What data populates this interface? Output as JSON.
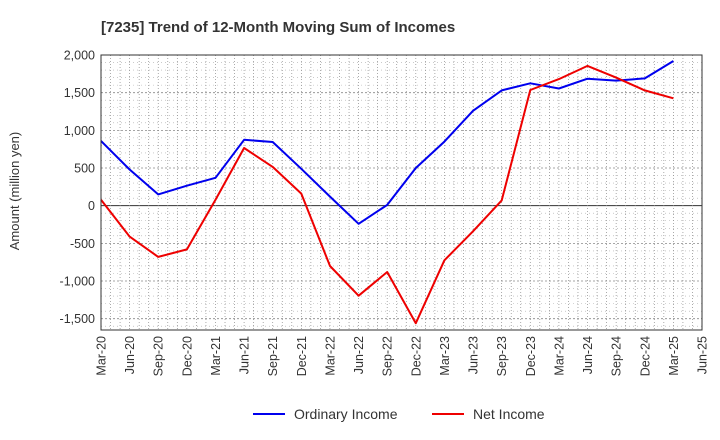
{
  "chart_data": {
    "type": "line",
    "title": "[7235]  Trend of 12-Month Moving Sum of Incomes",
    "xlabel": "",
    "ylabel": "Amount (million yen)",
    "ylim": [
      -1650,
      2000
    ],
    "yticks": [
      -1500,
      -1000,
      -500,
      0,
      500,
      1000,
      1500,
      2000
    ],
    "ytick_labels": [
      "-1,500",
      "-1,000",
      "-500",
      "0",
      "500",
      "1,000",
      "1,500",
      "2,000"
    ],
    "categories": [
      "Mar-20",
      "Jun-20",
      "Sep-20",
      "Dec-20",
      "Mar-21",
      "Jun-21",
      "Sep-21",
      "Dec-21",
      "Mar-22",
      "Jun-22",
      "Sep-22",
      "Dec-22",
      "Mar-23",
      "Jun-23",
      "Sep-23",
      "Dec-23",
      "Mar-24",
      "Jun-24",
      "Sep-24",
      "Dec-24",
      "Mar-25",
      "Jun-25"
    ],
    "grid": true,
    "legend_position": "bottom",
    "series": [
      {
        "name": "Ordinary Income",
        "color": "#0000ee",
        "values": [
          860,
          480,
          150,
          265,
          370,
          875,
          845,
          490,
          120,
          -240,
          10,
          500,
          850,
          1260,
          1530,
          1625,
          1555,
          1685,
          1660,
          1690,
          1920,
          null
        ]
      },
      {
        "name": "Net Income",
        "color": "#ee0000",
        "values": [
          80,
          -410,
          -680,
          -580,
          80,
          765,
          515,
          160,
          -800,
          -1195,
          -880,
          -1560,
          -725,
          -340,
          70,
          1535,
          1680,
          1855,
          1700,
          1530,
          1425,
          null
        ]
      }
    ]
  }
}
